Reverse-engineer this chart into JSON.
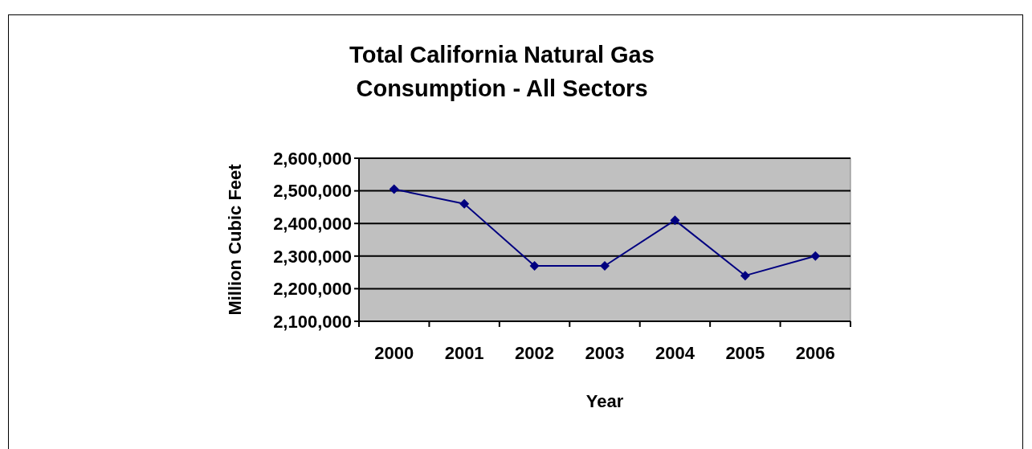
{
  "chart_data": {
    "type": "line",
    "title": "Total California Natural Gas Consumption - All Sectors",
    "xlabel": "Year",
    "ylabel": "Million Cubic Feet",
    "categories": [
      "2000",
      "2001",
      "2002",
      "2003",
      "2004",
      "2005",
      "2006"
    ],
    "series": [
      {
        "color": "#000080",
        "values": [
          2505000,
          2460000,
          2270000,
          2270000,
          2410000,
          2240000,
          2300000
        ]
      }
    ],
    "ylim": [
      2100000,
      2600000
    ],
    "yticks": [
      {
        "value": 2100000,
        "label": "2,100,000"
      },
      {
        "value": 2200000,
        "label": "2,200,000"
      },
      {
        "value": 2300000,
        "label": "2,300,000"
      },
      {
        "value": 2400000,
        "label": "2,400,000"
      },
      {
        "value": 2500000,
        "label": "2,500,000"
      },
      {
        "value": 2600000,
        "label": "2,600,000"
      }
    ],
    "grid": "y",
    "marker": "diamond"
  }
}
